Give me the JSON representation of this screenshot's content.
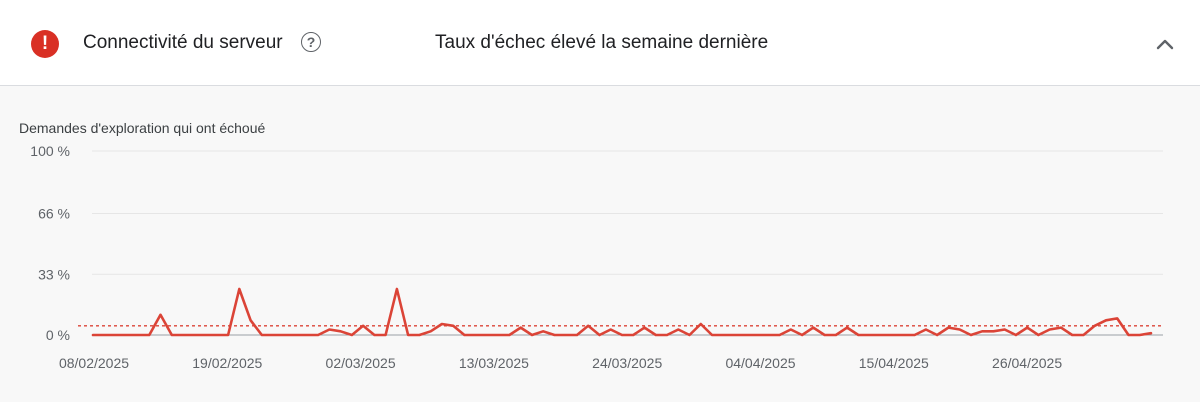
{
  "header": {
    "title": "Connectivité du serveur",
    "status_text": "Taux d'échec élevé la semaine dernière",
    "status_icon": "error-icon",
    "help_icon": "help-circle-icon",
    "collapse_icon": "chevron-up-icon",
    "status_color": "#d93025"
  },
  "chart_data": {
    "type": "line",
    "title": "Demandes d'exploration qui ont échoué",
    "xlabel": "",
    "ylabel": "",
    "ylim": [
      0,
      100
    ],
    "y_ticks": [
      "100 %",
      "66 %",
      "33 %",
      "0 %"
    ],
    "y_tick_values": [
      100,
      66,
      33,
      0
    ],
    "x_tick_labels": [
      "08/02/2025",
      "19/02/2025",
      "02/03/2025",
      "13/03/2025",
      "24/03/2025",
      "04/04/2025",
      "15/04/2025",
      "26/04/2025"
    ],
    "grid": true,
    "threshold": 5,
    "series_color": "#db4437",
    "threshold_color": "#db4437",
    "series": [
      {
        "values": [
          0,
          0,
          0,
          0,
          0,
          0,
          11,
          0,
          0,
          0,
          0,
          0,
          0,
          25,
          8,
          0,
          0,
          0,
          0,
          0,
          0,
          3,
          2,
          0,
          5,
          0,
          0,
          25,
          0,
          0,
          2,
          6,
          5,
          0,
          0,
          0,
          0,
          0,
          4,
          0,
          2,
          0,
          0,
          0,
          5,
          0,
          3,
          0,
          0,
          4,
          0,
          0,
          3,
          0,
          6,
          0,
          0,
          0,
          0,
          0,
          0,
          0,
          3,
          0,
          4,
          0,
          0,
          4,
          0,
          0,
          0,
          0,
          0,
          0,
          3,
          0,
          4,
          3,
          0,
          2,
          2,
          3,
          0,
          4,
          0,
          3,
          4,
          0,
          0,
          5,
          8,
          9,
          0,
          0,
          1
        ]
      }
    ]
  }
}
